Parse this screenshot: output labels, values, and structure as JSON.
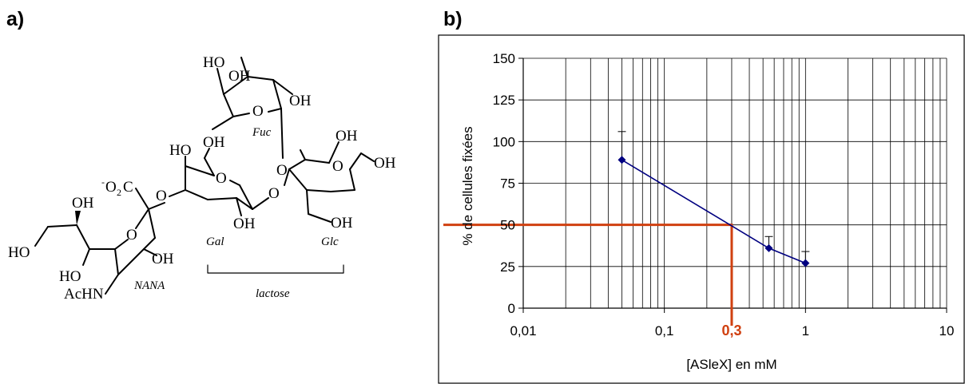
{
  "panels": {
    "a": "a)",
    "b": "b)"
  },
  "structure": {
    "labels": {
      "ho_fuc_top": "HO",
      "oh_fuc_top": "OH",
      "oh_fuc_right": "OH",
      "fuc_ring_o": "O",
      "fuc": "Fuc",
      "ho_gal": "HO",
      "oh_gal_ch2": "OH",
      "gal_ring_o": "O",
      "gal_link_o": "O",
      "oh_gal_bottom": "OH",
      "gal": "Gal",
      "oh_glc_top": "OH",
      "oh_glc_anomeric": "OH",
      "glc_ring_o": "O",
      "glc_fuc_o": "O",
      "oh_glc_ch2": "OH",
      "glc": "Glc",
      "co2_minus": "-",
      "co2_o": "O",
      "co2_sub": "2",
      "co2_c": "C",
      "nana_link_o": "O",
      "oh_nana_top": "OH",
      "ho_nana_left": "HO",
      "nana_ring_o": "O",
      "oh_nana_ring": "OH",
      "ho_nana_chain": "HO",
      "achn": "AcHN",
      "nana": "NANA",
      "lactose": "lactose"
    }
  },
  "chart_data": {
    "type": "line",
    "x_scale": "log",
    "xlim": [
      0.01,
      10
    ],
    "ylim": [
      0,
      150
    ],
    "x_ticks": [
      0.01,
      0.1,
      1,
      10
    ],
    "x_tick_labels": [
      "0,01",
      "0,1",
      "1",
      "10"
    ],
    "y_ticks": [
      0,
      25,
      50,
      75,
      100,
      125,
      150
    ],
    "y_tick_labels": [
      "0",
      "25",
      "50",
      "75",
      "100",
      "125",
      "150"
    ],
    "xlabel": "[ASleX]  en mM",
    "ylabel": "% de cellules fixées",
    "grid": true,
    "series": [
      {
        "x": [
          0.05,
          0.55,
          1.0
        ],
        "y": [
          89,
          36,
          27
        ],
        "error_upper": [
          106,
          43,
          34
        ],
        "color": "#000080"
      }
    ],
    "annotation": {
      "x": 0.3,
      "y": 50,
      "label": "0,3",
      "color": "#d04010"
    }
  }
}
